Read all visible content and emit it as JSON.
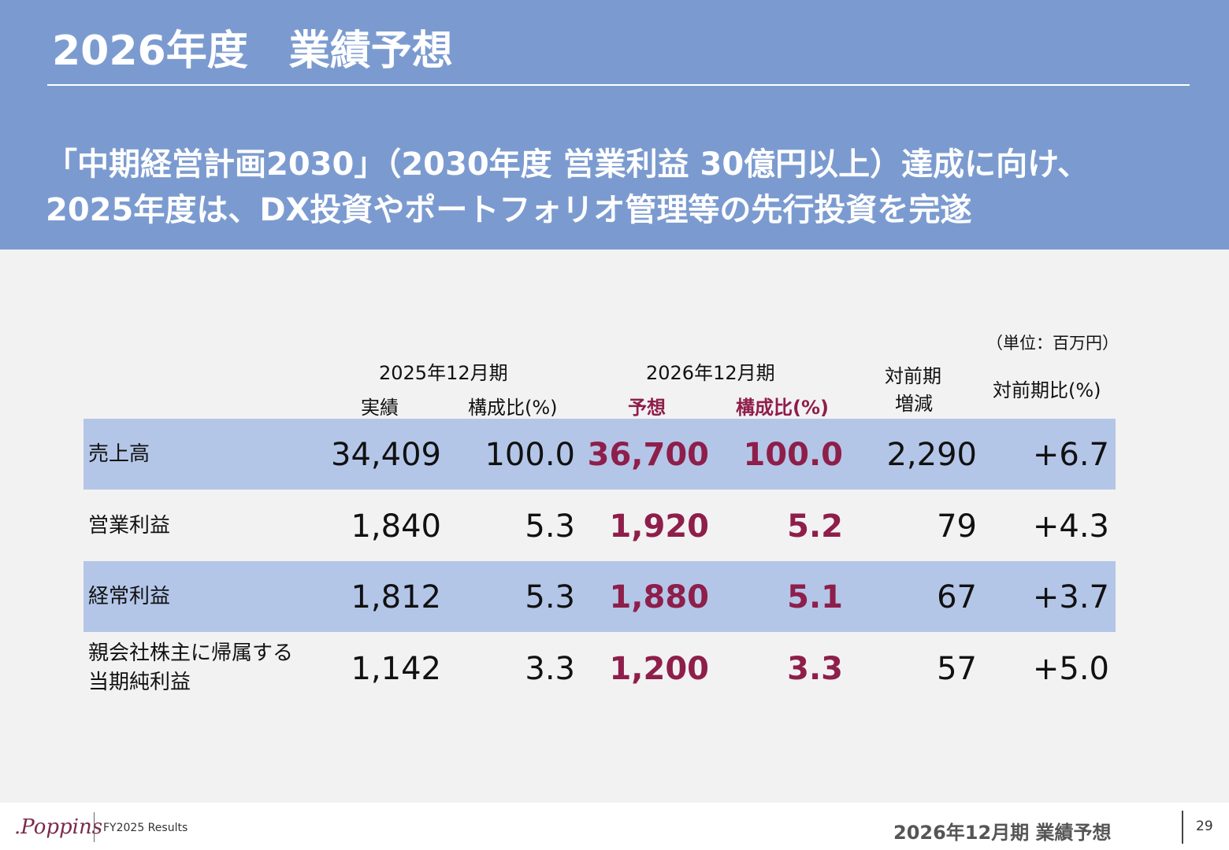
{
  "header": {
    "title": "2026年度　業績予想",
    "lead_line1": "「中期経営計画2030」（2030年度 営業利益 30億円以上）達成に向け、",
    "lead_line2": "2025年度は、DX投資やポートフォリオ管理等の先行投資を完遂"
  },
  "table": {
    "unit": "（単位：百万円）",
    "period_2025": "2025年12月期",
    "period_2026": "2026年12月期",
    "col_actual": "実績",
    "col_ratio": "構成比(%)",
    "col_forecast": "予想",
    "col_ratio_forecast": "構成比(%)",
    "col_change_line1": "対前期",
    "col_change_line2": "増減",
    "col_change_pct": "対前期比(%)",
    "rows": [
      {
        "label1": "売上高",
        "label2": "",
        "actual": "34,409",
        "ratio": "100.0",
        "forecast": "36,700",
        "ratio_forecast": "100.0",
        "change": "2,290",
        "change_pct": "+6.7"
      },
      {
        "label1": "営業利益",
        "label2": "",
        "actual": "1,840",
        "ratio": "5.3",
        "forecast": "1,920",
        "ratio_forecast": "5.2",
        "change": "79",
        "change_pct": "+4.3"
      },
      {
        "label1": "経常利益",
        "label2": "",
        "actual": "1,812",
        "ratio": "5.3",
        "forecast": "1,880",
        "ratio_forecast": "5.1",
        "change": "67",
        "change_pct": "+3.7"
      },
      {
        "label1": "親会社株主に帰属する",
        "label2": "当期純利益",
        "actual": "1,142",
        "ratio": "3.3",
        "forecast": "1,200",
        "ratio_forecast": "3.3",
        "change": "57",
        "change_pct": "+5.0"
      }
    ]
  },
  "footer": {
    "logo_text": ".Poppins",
    "report_label": "FY2025 Results",
    "section_title": "2026年12月期 業績予想",
    "page_number": "29"
  }
}
